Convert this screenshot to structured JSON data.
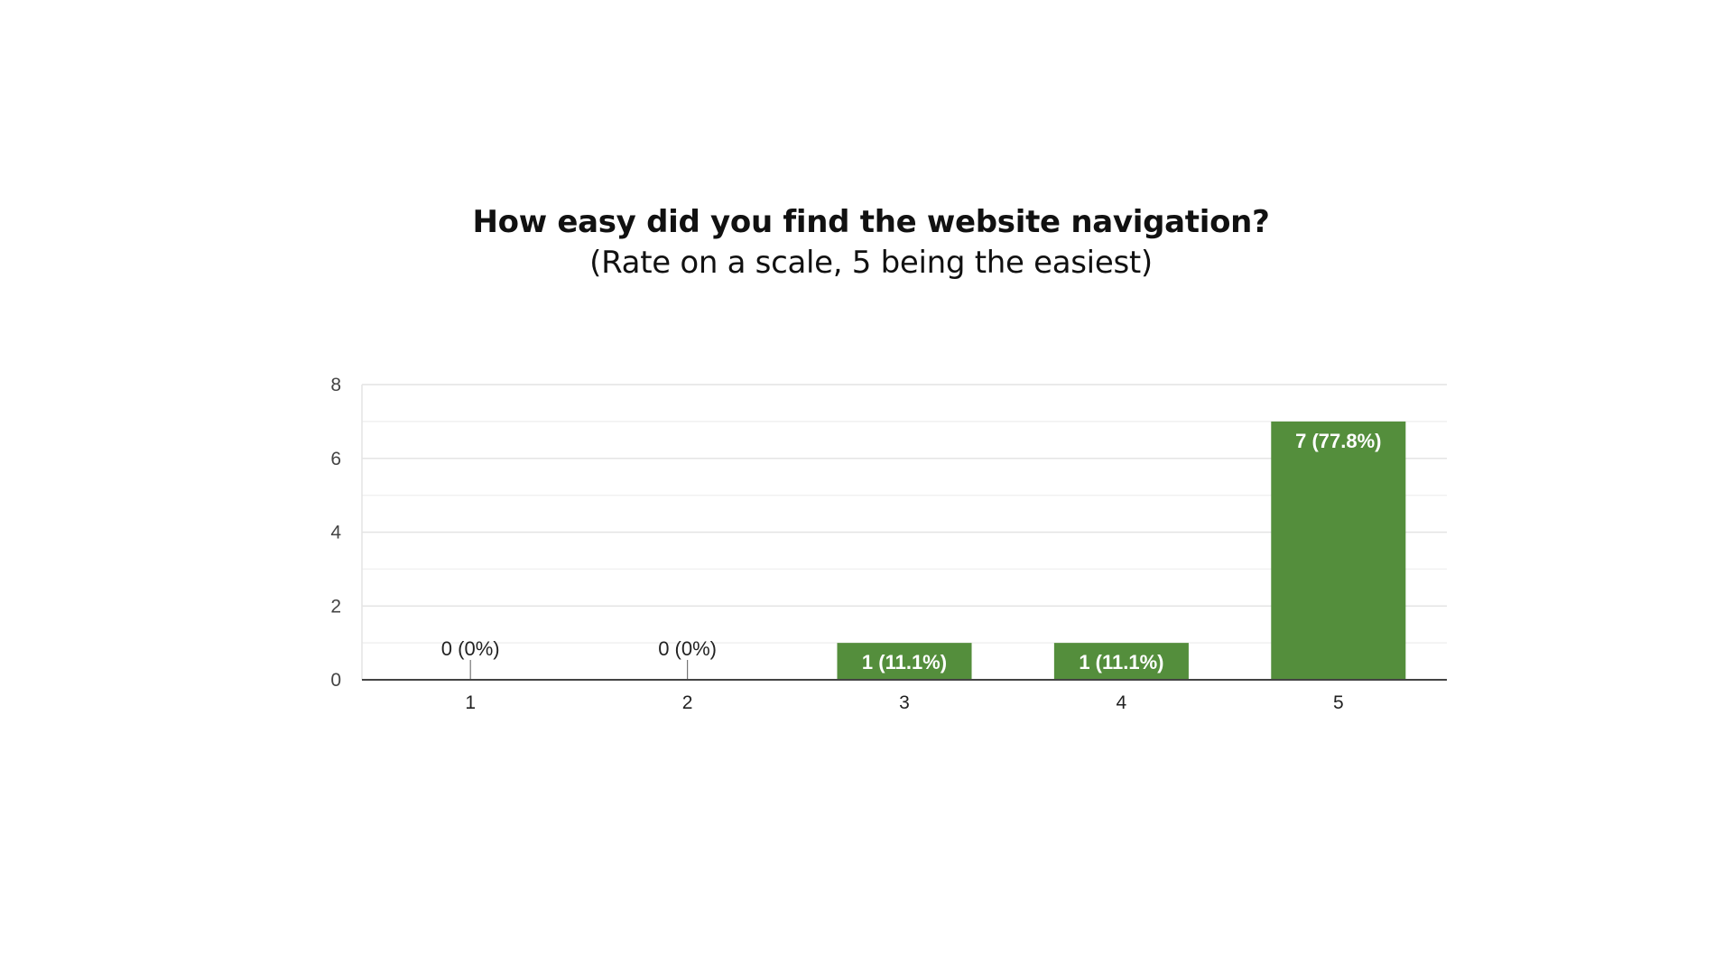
{
  "chart_data": {
    "type": "bar",
    "title": "How easy did you find the website navigation?",
    "subtitle": "(Rate on a scale, 5 being the easiest)",
    "categories": [
      "1",
      "2",
      "3",
      "4",
      "5"
    ],
    "values": [
      0,
      0,
      1,
      1,
      7
    ],
    "data_labels": [
      "0 (0%)",
      "0 (0%)",
      "1 (11.1%)",
      "1 (11.1%)",
      "7 (77.8%)"
    ],
    "ylim": [
      0,
      8
    ],
    "yticks": [
      "0",
      "2",
      "4",
      "6",
      "8"
    ],
    "xlabel": "",
    "ylabel": "",
    "grid": true,
    "bar_color": "#548e3c"
  }
}
